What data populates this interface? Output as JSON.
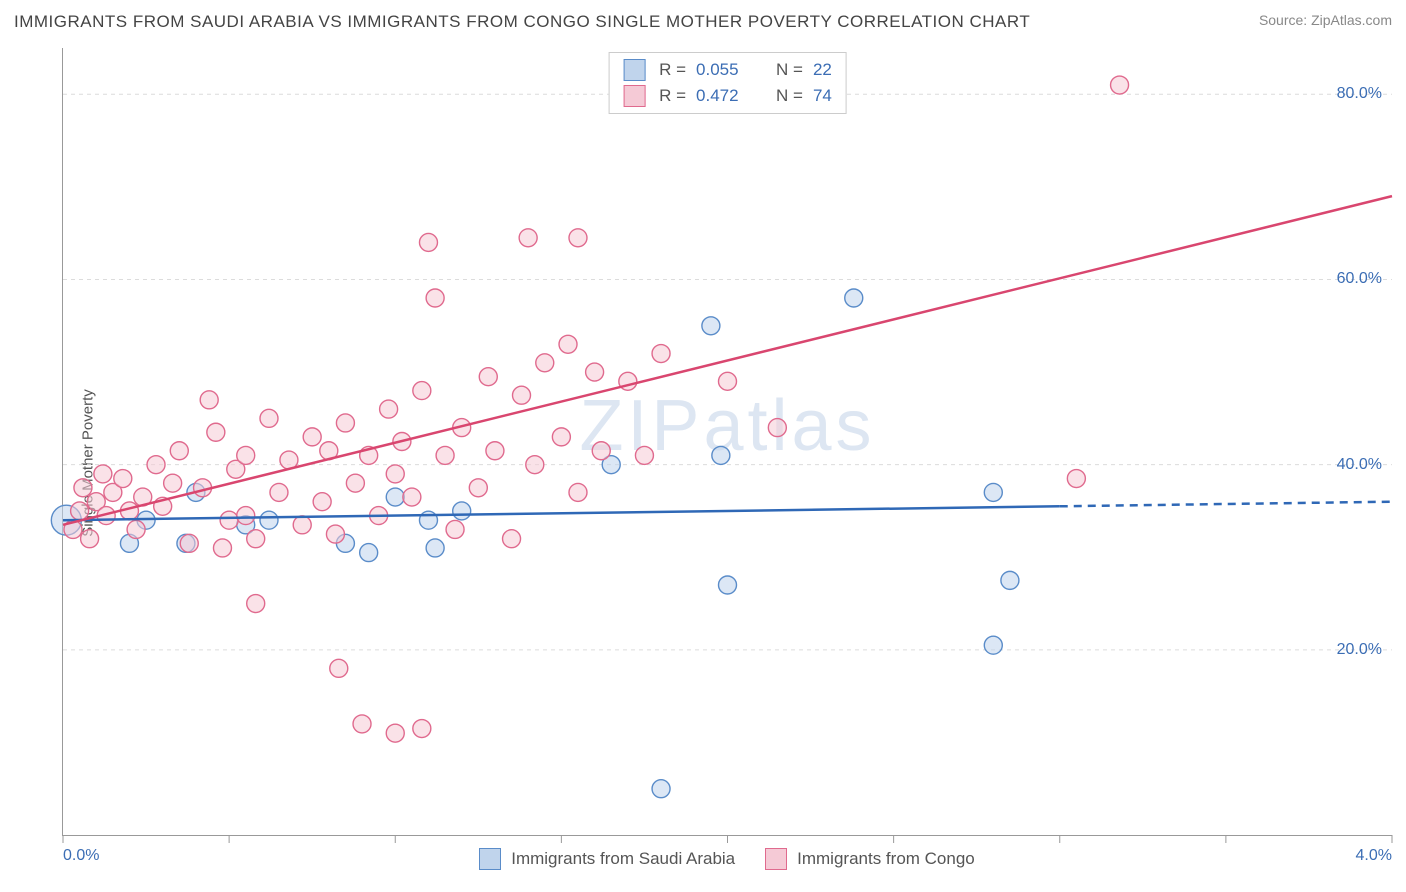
{
  "title": "IMMIGRANTS FROM SAUDI ARABIA VS IMMIGRANTS FROM CONGO SINGLE MOTHER POVERTY CORRELATION CHART",
  "source": "Source: ZipAtlas.com",
  "ylabel": "Single Mother Poverty",
  "watermark_zip": "ZIP",
  "watermark_atlas": "atlas",
  "chart": {
    "type": "scatter",
    "xlim": [
      0.0,
      4.0
    ],
    "ylim": [
      0.0,
      85.0
    ],
    "xticks": [
      {
        "v": 0.0,
        "label": "0.0%"
      },
      {
        "v": 0.5,
        "label": ""
      },
      {
        "v": 1.0,
        "label": ""
      },
      {
        "v": 1.5,
        "label": ""
      },
      {
        "v": 2.0,
        "label": ""
      },
      {
        "v": 2.5,
        "label": ""
      },
      {
        "v": 3.0,
        "label": ""
      },
      {
        "v": 3.5,
        "label": ""
      },
      {
        "v": 4.0,
        "label": "4.0%"
      }
    ],
    "yticks": [
      {
        "v": 20.0,
        "label": "20.0%"
      },
      {
        "v": 40.0,
        "label": "40.0%"
      },
      {
        "v": 60.0,
        "label": "60.0%"
      },
      {
        "v": 80.0,
        "label": "80.0%"
      }
    ],
    "grid_color": "#dcdcdc",
    "grid_dash": "4,4",
    "axis_color": "#999999",
    "tick_len": 8,
    "background_color": "#ffffff",
    "marker_radius": 9,
    "marker_stroke_width": 1.4,
    "line_width": 2.5,
    "series": [
      {
        "id": "saudi",
        "label": "Immigrants from Saudi Arabia",
        "fill": "#c0d4ec",
        "stroke": "#5a8cc9",
        "line_color": "#2f68b6",
        "R": "0.055",
        "N": "22",
        "trend": {
          "x1": 0.0,
          "y1": 34.0,
          "x2": 4.0,
          "y2": 36.0,
          "dash_after_x": 3.0
        },
        "points": [
          {
            "x": 0.01,
            "y": 34.0,
            "r": 15
          },
          {
            "x": 0.2,
            "y": 31.5
          },
          {
            "x": 0.25,
            "y": 34.0
          },
          {
            "x": 0.37,
            "y": 31.5
          },
          {
            "x": 0.4,
            "y": 37.0
          },
          {
            "x": 0.55,
            "y": 33.5
          },
          {
            "x": 0.62,
            "y": 34.0
          },
          {
            "x": 0.85,
            "y": 31.5
          },
          {
            "x": 0.92,
            "y": 30.5
          },
          {
            "x": 1.0,
            "y": 36.5
          },
          {
            "x": 1.1,
            "y": 34.0
          },
          {
            "x": 1.12,
            "y": 31.0
          },
          {
            "x": 1.2,
            "y": 35.0
          },
          {
            "x": 1.65,
            "y": 40.0
          },
          {
            "x": 1.95,
            "y": 55.0
          },
          {
            "x": 1.98,
            "y": 41.0
          },
          {
            "x": 2.8,
            "y": 37.0
          },
          {
            "x": 2.0,
            "y": 27.0
          },
          {
            "x": 2.38,
            "y": 58.0
          },
          {
            "x": 2.8,
            "y": 20.5
          },
          {
            "x": 1.8,
            "y": 5.0
          },
          {
            "x": 2.85,
            "y": 27.5
          }
        ]
      },
      {
        "id": "congo",
        "label": "Immigrants from Congo",
        "fill": "#f5cad6",
        "stroke": "#e06a8e",
        "line_color": "#d9466f",
        "R": "0.472",
        "N": "74",
        "trend": {
          "x1": 0.0,
          "y1": 33.5,
          "x2": 4.0,
          "y2": 69.0,
          "dash_after_x": null
        },
        "points": [
          {
            "x": 0.03,
            "y": 33.0
          },
          {
            "x": 0.05,
            "y": 35.0
          },
          {
            "x": 0.06,
            "y": 37.5
          },
          {
            "x": 0.08,
            "y": 32.0
          },
          {
            "x": 0.1,
            "y": 36.0
          },
          {
            "x": 0.12,
            "y": 39.0
          },
          {
            "x": 0.13,
            "y": 34.5
          },
          {
            "x": 0.15,
            "y": 37.0
          },
          {
            "x": 0.18,
            "y": 38.5
          },
          {
            "x": 0.2,
            "y": 35.0
          },
          {
            "x": 0.22,
            "y": 33.0
          },
          {
            "x": 0.24,
            "y": 36.5
          },
          {
            "x": 0.28,
            "y": 40.0
          },
          {
            "x": 0.3,
            "y": 35.5
          },
          {
            "x": 0.33,
            "y": 38.0
          },
          {
            "x": 0.35,
            "y": 41.5
          },
          {
            "x": 0.38,
            "y": 31.5
          },
          {
            "x": 0.42,
            "y": 37.5
          },
          {
            "x": 0.44,
            "y": 47.0
          },
          {
            "x": 0.46,
            "y": 43.5
          },
          {
            "x": 0.5,
            "y": 34.0
          },
          {
            "x": 0.52,
            "y": 39.5
          },
          {
            "x": 0.55,
            "y": 41.0
          },
          {
            "x": 0.58,
            "y": 32.0
          },
          {
            "x": 0.58,
            "y": 25.0
          },
          {
            "x": 0.62,
            "y": 45.0
          },
          {
            "x": 0.65,
            "y": 37.0
          },
          {
            "x": 0.68,
            "y": 40.5
          },
          {
            "x": 0.72,
            "y": 33.5
          },
          {
            "x": 0.75,
            "y": 43.0
          },
          {
            "x": 0.78,
            "y": 36.0
          },
          {
            "x": 0.8,
            "y": 41.5
          },
          {
            "x": 0.82,
            "y": 32.5
          },
          {
            "x": 0.83,
            "y": 18.0
          },
          {
            "x": 0.85,
            "y": 44.5
          },
          {
            "x": 0.88,
            "y": 38.0
          },
          {
            "x": 0.9,
            "y": 12.0
          },
          {
            "x": 0.92,
            "y": 41.0
          },
          {
            "x": 0.95,
            "y": 34.5
          },
          {
            "x": 0.98,
            "y": 46.0
          },
          {
            "x": 1.0,
            "y": 39.0
          },
          {
            "x": 1.0,
            "y": 11.0
          },
          {
            "x": 1.02,
            "y": 42.5
          },
          {
            "x": 1.05,
            "y": 36.5
          },
          {
            "x": 1.08,
            "y": 48.0
          },
          {
            "x": 1.08,
            "y": 11.5
          },
          {
            "x": 1.1,
            "y": 64.0
          },
          {
            "x": 1.12,
            "y": 58.0
          },
          {
            "x": 1.15,
            "y": 41.0
          },
          {
            "x": 1.18,
            "y": 33.0
          },
          {
            "x": 1.2,
            "y": 44.0
          },
          {
            "x": 1.25,
            "y": 37.5
          },
          {
            "x": 1.28,
            "y": 49.5
          },
          {
            "x": 1.3,
            "y": 41.5
          },
          {
            "x": 1.35,
            "y": 32.0
          },
          {
            "x": 1.38,
            "y": 47.5
          },
          {
            "x": 1.4,
            "y": 64.5
          },
          {
            "x": 1.42,
            "y": 40.0
          },
          {
            "x": 1.45,
            "y": 51.0
          },
          {
            "x": 1.5,
            "y": 43.0
          },
          {
            "x": 1.52,
            "y": 53.0
          },
          {
            "x": 1.55,
            "y": 37.0
          },
          {
            "x": 1.55,
            "y": 64.5
          },
          {
            "x": 1.6,
            "y": 50.0
          },
          {
            "x": 1.62,
            "y": 41.5
          },
          {
            "x": 1.7,
            "y": 49.0
          },
          {
            "x": 1.75,
            "y": 41.0
          },
          {
            "x": 1.8,
            "y": 52.0
          },
          {
            "x": 2.0,
            "y": 49.0
          },
          {
            "x": 2.15,
            "y": 44.0
          },
          {
            "x": 3.05,
            "y": 38.5
          },
          {
            "x": 3.18,
            "y": 81.0
          },
          {
            "x": 0.48,
            "y": 31.0
          },
          {
            "x": 0.55,
            "y": 34.5
          }
        ]
      }
    ]
  },
  "legend_top_rows": [
    {
      "series": 0
    },
    {
      "series": 1
    }
  ],
  "legend_bottom_items": [
    {
      "series": 0
    },
    {
      "series": 1
    }
  ],
  "labels": {
    "R": "R =",
    "N": "N ="
  }
}
